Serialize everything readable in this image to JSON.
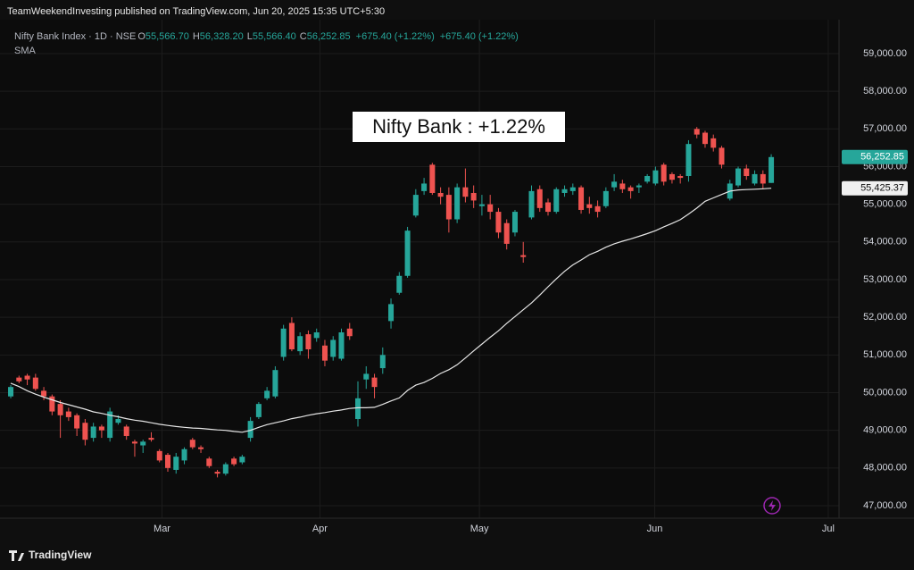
{
  "publisher_line": "TeamWeekendInvesting published on TradingView.com, Jun 20, 2025 15:35 UTC+5:30",
  "footer_logo": "TradingView",
  "chart_data": {
    "type": "candlestick",
    "symbol": "Nifty Bank Index · 1D · NSE",
    "ohlc_legend": [
      {
        "key": "O",
        "value": "55,566.70"
      },
      {
        "key": "H",
        "value": "56,328.20"
      },
      {
        "key": "L",
        "value": "55,566.40"
      },
      {
        "key": "C",
        "value": "56,252.85"
      }
    ],
    "change_labels": [
      "+675.40 (+1.22%)",
      "+675.40 (+1.22%)"
    ],
    "annotation": "Nifty Bank : +1.22%",
    "up_color": "#26a69a",
    "down_color": "#ef5350",
    "open": [
      49900,
      50400,
      50450,
      50400,
      50050,
      49900,
      49700,
      49500,
      49400,
      49200,
      48800,
      49100,
      48800,
      49200,
      49100,
      48700,
      48600,
      48800,
      48450,
      48350,
      47950,
      48200,
      48750,
      48550,
      48250,
      47900,
      47850,
      48250,
      48150,
      48800,
      49350,
      49850,
      49900,
      50950,
      51850,
      51100,
      51550,
      51450,
      51250,
      50950,
      50900,
      51700,
      49300,
      50350,
      50400,
      50650,
      51900,
      52650,
      53100,
      54700,
      55350,
      56050,
      55300,
      55250,
      54600,
      55450,
      55300,
      54950,
      55000,
      54800,
      54500,
      54250,
      53650,
      54650,
      55400,
      55050,
      54800,
      55300,
      55350,
      55450,
      55000,
      54950,
      54950,
      55450,
      55550,
      55450,
      55450,
      55600,
      55550,
      56050,
      55800,
      55750,
      55750,
      57000,
      56900,
      56750,
      56500,
      55150,
      55500,
      55950,
      55550,
      55800,
      55566.7
    ],
    "high": [
      50200,
      50450,
      50500,
      50500,
      50150,
      49950,
      49800,
      49600,
      49450,
      49300,
      49200,
      49150,
      49600,
      49400,
      49150,
      48750,
      48750,
      48950,
      48500,
      48400,
      48400,
      48550,
      48800,
      48600,
      48300,
      47950,
      48150,
      48300,
      48350,
      49350,
      49750,
      50150,
      50700,
      51800,
      52000,
      51600,
      51650,
      51700,
      51400,
      51500,
      51700,
      51850,
      50300,
      50700,
      50500,
      51200,
      52500,
      53200,
      54400,
      55400,
      55700,
      56100,
      55450,
      55450,
      55550,
      55950,
      55500,
      55250,
      55250,
      54900,
      54600,
      54850,
      54000,
      55500,
      55500,
      55150,
      55450,
      55500,
      55550,
      55500,
      55200,
      55100,
      55450,
      55800,
      55650,
      55500,
      55550,
      55800,
      56000,
      56100,
      55850,
      55800,
      56700,
      57050,
      56950,
      56850,
      56550,
      55650,
      56000,
      56050,
      55900,
      55900,
      56328.2
    ],
    "low": [
      49850,
      50250,
      50200,
      50050,
      49800,
      49400,
      48800,
      49250,
      48850,
      48600,
      48700,
      48800,
      48700,
      49150,
      48750,
      48300,
      48400,
      48700,
      48150,
      47900,
      47850,
      48100,
      48500,
      48400,
      48000,
      47750,
      47800,
      48050,
      48100,
      48700,
      49300,
      49800,
      49850,
      50850,
      51100,
      51000,
      50900,
      51350,
      50700,
      50850,
      50850,
      51400,
      49100,
      50100,
      49850,
      50500,
      51700,
      52600,
      53050,
      54650,
      55250,
      55250,
      55000,
      54250,
      54500,
      55050,
      54900,
      54700,
      54600,
      54100,
      53800,
      54150,
      53450,
      54600,
      54800,
      54700,
      54750,
      55200,
      55250,
      54750,
      54750,
      54650,
      54900,
      55350,
      55300,
      55150,
      55300,
      55550,
      55500,
      55500,
      55550,
      55550,
      55600,
      56750,
      56500,
      56400,
      55950,
      55100,
      55450,
      55650,
      55500,
      55400,
      55566.4
    ],
    "close": [
      50150,
      50300,
      50350,
      50100,
      49900,
      49500,
      49400,
      49350,
      49050,
      48750,
      49100,
      49000,
      49500,
      49300,
      48850,
      48650,
      48700,
      48750,
      48200,
      48000,
      48300,
      48500,
      48550,
      48500,
      48050,
      47850,
      48100,
      48100,
      48300,
      49250,
      49700,
      50050,
      50600,
      51700,
      51150,
      51500,
      51150,
      51600,
      50850,
      51400,
      51600,
      51500,
      49850,
      50500,
      50150,
      51000,
      52350,
      53100,
      54300,
      55250,
      55550,
      55300,
      55200,
      54600,
      55450,
      55200,
      55100,
      55000,
      54800,
      54250,
      53950,
      54800,
      53600,
      55350,
      54900,
      54800,
      55400,
      55400,
      55450,
      54850,
      54900,
      54800,
      55350,
      55600,
      55400,
      55350,
      55500,
      55750,
      55900,
      55600,
      55650,
      55700,
      56600,
      56850,
      56600,
      56500,
      56050,
      55550,
      55950,
      55750,
      55800,
      55550,
      56252.85
    ],
    "last_close_label": "56,252.85",
    "sma": {
      "name": "SMA",
      "color": "#e6e6e6",
      "value_label": "55,425.37",
      "values": [
        50250,
        50160,
        50050,
        49960,
        49880,
        49810,
        49740,
        49680,
        49620,
        49560,
        49490,
        49450,
        49400,
        49360,
        49310,
        49270,
        49240,
        49200,
        49160,
        49130,
        49100,
        49080,
        49060,
        49050,
        49030,
        49010,
        49000,
        48970,
        48950,
        49000,
        49080,
        49150,
        49200,
        49250,
        49310,
        49350,
        49400,
        49440,
        49470,
        49510,
        49540,
        49580,
        49600,
        49600,
        49610,
        49690,
        49780,
        49860,
        50060,
        50200,
        50270,
        50380,
        50510,
        50610,
        50740,
        50920,
        51110,
        51290,
        51470,
        51640,
        51840,
        52020,
        52200,
        52380,
        52590,
        52810,
        53020,
        53220,
        53390,
        53520,
        53660,
        53750,
        53860,
        53950,
        54020,
        54080,
        54150,
        54220,
        54300,
        54400,
        54490,
        54590,
        54740,
        54900,
        55080,
        55170,
        55260,
        55350,
        55380,
        55390,
        55400,
        55410,
        55425.37
      ]
    },
    "xlim": [
      -1.3,
      100.2
    ],
    "xticks": [
      {
        "value": 18.3,
        "label": "Mar"
      },
      {
        "value": 37.4,
        "label": "Apr"
      },
      {
        "value": 56.7,
        "label": "May"
      },
      {
        "value": 77.9,
        "label": "Jun"
      },
      {
        "value": 98.9,
        "label": "Jul"
      }
    ],
    "ylim": [
      46668,
      59900
    ],
    "yticks": [
      {
        "value": 47000,
        "label": "47,000.00"
      },
      {
        "value": 48000,
        "label": "48,000.00"
      },
      {
        "value": 49000,
        "label": "49,000.00"
      },
      {
        "value": 50000,
        "label": "50,000.00"
      },
      {
        "value": 51000,
        "label": "51,000.00"
      },
      {
        "value": 52000,
        "label": "52,000.00"
      },
      {
        "value": 53000,
        "label": "53,000.00"
      },
      {
        "value": 54000,
        "label": "54,000.00"
      },
      {
        "value": 55000,
        "label": "55,000.00"
      },
      {
        "value": 56000,
        "label": "56,000.00"
      },
      {
        "value": 57000,
        "label": "57,000.00"
      },
      {
        "value": 58000,
        "label": "58,000.00"
      },
      {
        "value": 59000,
        "label": "59,000.00"
      }
    ],
    "grid": true
  }
}
